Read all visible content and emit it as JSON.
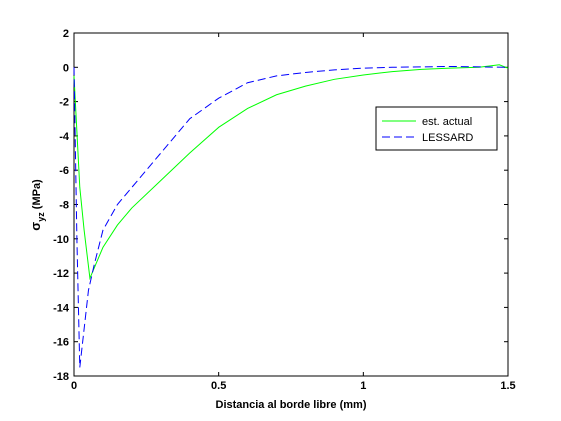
{
  "chart_data": {
    "type": "line",
    "xlabel": "Distancia al borde libre (mm)",
    "ylabel_parts": [
      "σ",
      "yz",
      " (MPa)"
    ],
    "xlim": [
      0,
      1.5
    ],
    "xticks": [
      0,
      0.5,
      1,
      1.5
    ],
    "ylim": [
      -18,
      2
    ],
    "yticks": [
      -18,
      -16,
      -14,
      -12,
      -10,
      -8,
      -6,
      -4,
      -2,
      0,
      2
    ],
    "legend": "upper right",
    "series": [
      {
        "name": "est. actual",
        "color": "#00ff00",
        "style": "solid",
        "x": [
          0,
          0.02,
          0.035,
          0.055,
          0.1,
          0.15,
          0.2,
          0.3,
          0.4,
          0.5,
          0.6,
          0.7,
          0.8,
          0.9,
          1.0,
          1.1,
          1.2,
          1.3,
          1.4,
          1.47,
          1.5
        ],
        "values": [
          -0.5,
          -7,
          -9.5,
          -12.3,
          -10.5,
          -9.2,
          -8.2,
          -6.6,
          -5,
          -3.5,
          -2.4,
          -1.6,
          -1.1,
          -0.7,
          -0.45,
          -0.25,
          -0.12,
          -0.05,
          0,
          0.15,
          -0.05
        ]
      },
      {
        "name": "LESSARD",
        "color": "#0000ff",
        "style": "dashed",
        "x": [
          0,
          0.01,
          0.02,
          0.03,
          0.05,
          0.07,
          0.1,
          0.15,
          0.2,
          0.3,
          0.4,
          0.5,
          0.6,
          0.7,
          0.8,
          0.9,
          1.0,
          1.1,
          1.3,
          1.5
        ],
        "values": [
          0,
          -10,
          -17.5,
          -16,
          -13,
          -11.5,
          -9.5,
          -8,
          -7,
          -5,
          -3,
          -1.8,
          -0.9,
          -0.5,
          -0.3,
          -0.15,
          -0.05,
          0,
          0.05,
          0
        ]
      }
    ]
  }
}
